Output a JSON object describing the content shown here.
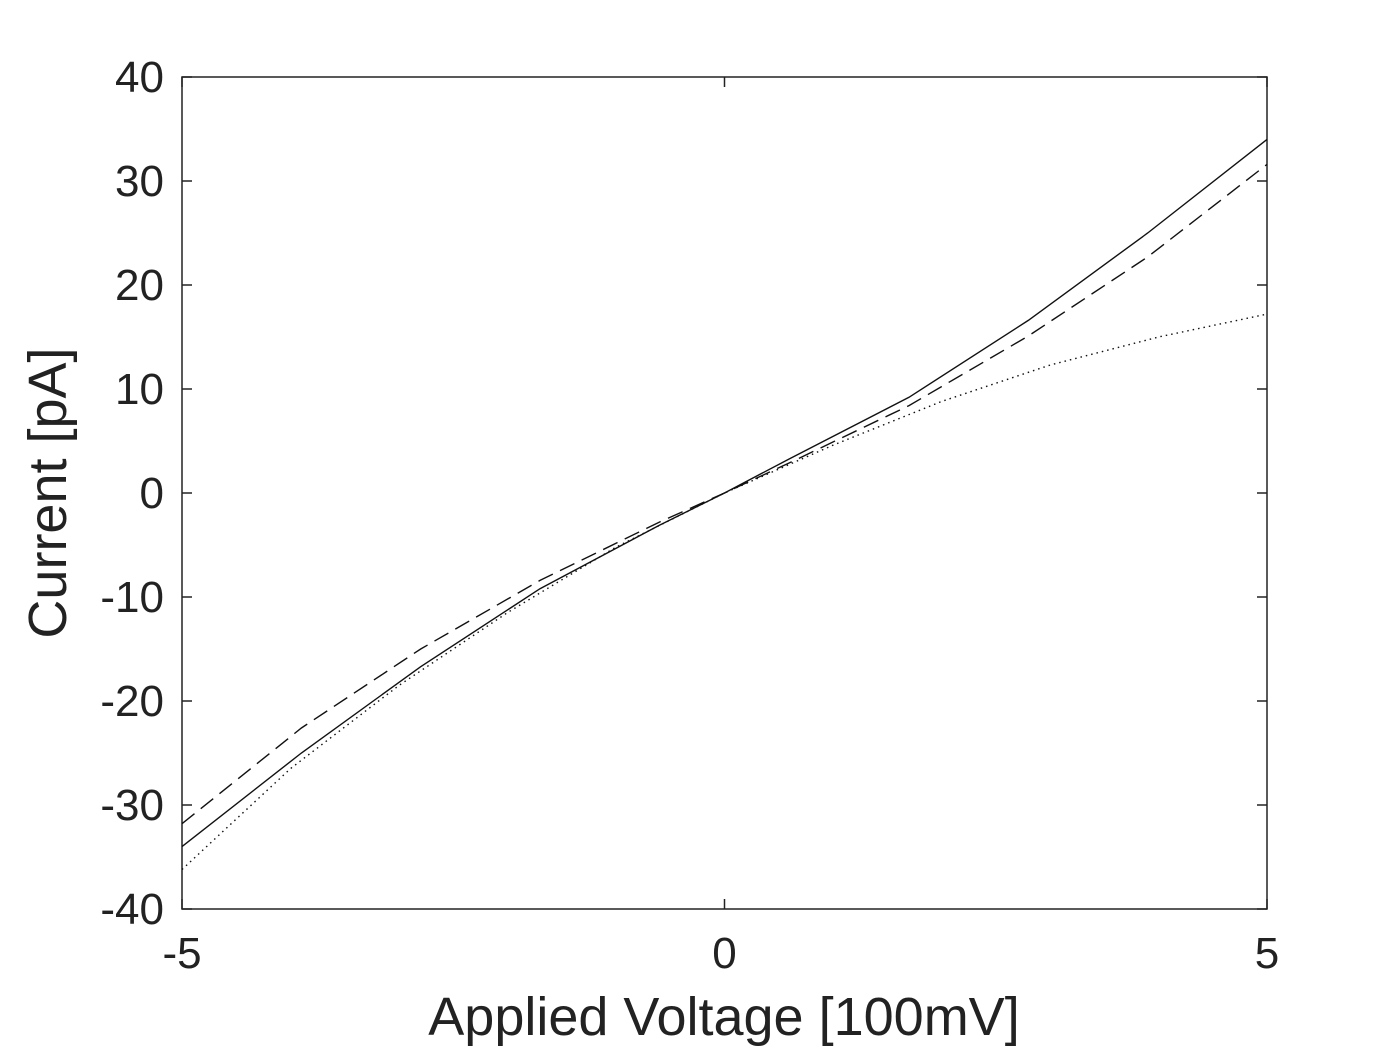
{
  "chart_data": {
    "type": "line",
    "title": "",
    "xlabel": "Applied Voltage [100mV]",
    "ylabel": "Current [pA]",
    "xlim": [
      -5,
      5
    ],
    "ylim": [
      -40,
      40
    ],
    "xticks": [
      -5,
      0,
      5
    ],
    "xtick_labels": [
      "-5",
      "0",
      "5"
    ],
    "yticks": [
      -40,
      -30,
      -20,
      -10,
      0,
      10,
      20,
      30,
      40
    ],
    "ytick_labels": [
      "-40",
      "-30",
      "-20",
      "-10",
      "0",
      "10",
      "20",
      "30",
      "40"
    ],
    "grid": false,
    "legend": "none",
    "series": [
      {
        "style": "solid",
        "x": [
          -5,
          -3.9,
          -2.8,
          -1.7,
          -0.6,
          0,
          0.6,
          1.7,
          2.8,
          3.9,
          5
        ],
        "y": [
          -34.0,
          -25.0,
          -16.7,
          -9.2,
          -3.1,
          0,
          3.3,
          9.2,
          16.6,
          25.0,
          34.0
        ]
      },
      {
        "style": "dashed",
        "x": [
          -5,
          -3.9,
          -2.8,
          -1.7,
          -0.6,
          0,
          0.6,
          1.7,
          2.8,
          3.9,
          5
        ],
        "y": [
          -31.8,
          -22.6,
          -15.0,
          -8.4,
          -2.8,
          0,
          2.9,
          8.4,
          15.1,
          22.7,
          31.6
        ]
      },
      {
        "style": "dotted",
        "x": [
          -5,
          -4,
          -3,
          -2,
          -1,
          0,
          1,
          2,
          3,
          4,
          5
        ],
        "y": [
          -36.2,
          -26.5,
          -18.5,
          -11.5,
          -5.2,
          0,
          4.6,
          8.8,
          12.3,
          15.0,
          17.2
        ]
      }
    ]
  }
}
